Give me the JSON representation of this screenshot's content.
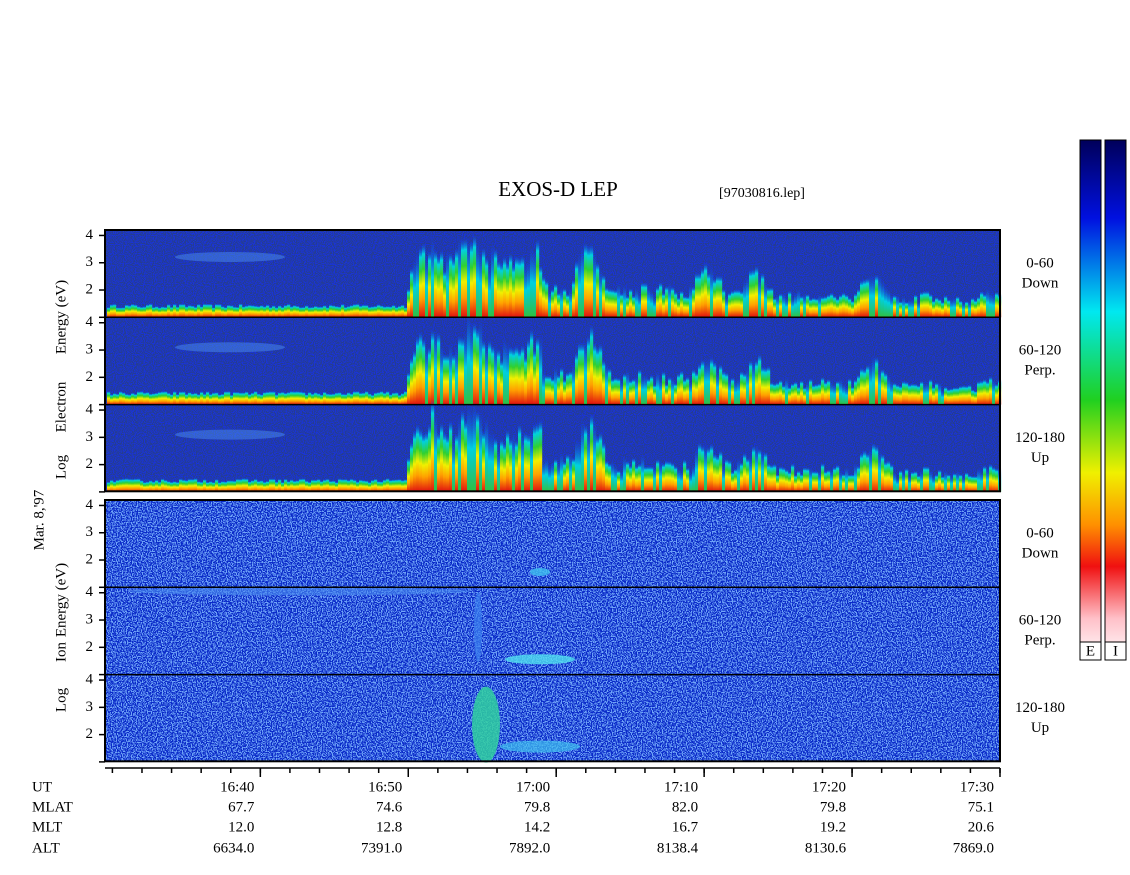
{
  "title": "EXOS-D LEP",
  "file": "[97030816.lep]",
  "date_label": "Mar. 8,'97",
  "electron": {
    "axis_label": [
      "Log",
      "Electron",
      "Energy (eV)"
    ]
  },
  "ion": {
    "axis_label": [
      "Log",
      "Ion",
      "Energy (eV)"
    ]
  },
  "panels": [
    {
      "angle": "0-60",
      "direction": "Down"
    },
    {
      "angle": "60-120",
      "direction": "Perp."
    },
    {
      "angle": "120-180",
      "direction": "Up"
    }
  ],
  "ylim": [
    1,
    4.2
  ],
  "yticks": [
    2,
    3,
    4
  ],
  "xlim": [
    989.5,
    1050
  ],
  "xticks": [
    {
      "value": 1000,
      "label": "16:40"
    },
    {
      "value": 1010,
      "label": "16:50"
    },
    {
      "value": 1020,
      "label": "17:00"
    },
    {
      "value": 1030,
      "label": "17:10"
    },
    {
      "value": 1040,
      "label": "17:20"
    },
    {
      "value": 1050,
      "label": "17:30"
    }
  ],
  "orbit_table": {
    "time_label": "UT",
    "rows": [
      {
        "label": "MLAT",
        "values": [
          "67.7",
          "74.6",
          "79.8",
          "82.0",
          "79.8",
          "75.1"
        ]
      },
      {
        "label": "MLT",
        "values": [
          "12.0",
          "12.8",
          "14.2",
          "16.7",
          "19.2",
          "20.6"
        ]
      },
      {
        "label": "ALT",
        "values": [
          "6634.0",
          "7391.0",
          "7892.0",
          "8138.4",
          "8130.6",
          "7869.0"
        ]
      }
    ]
  },
  "colorbars": [
    "E",
    "I"
  ]
}
